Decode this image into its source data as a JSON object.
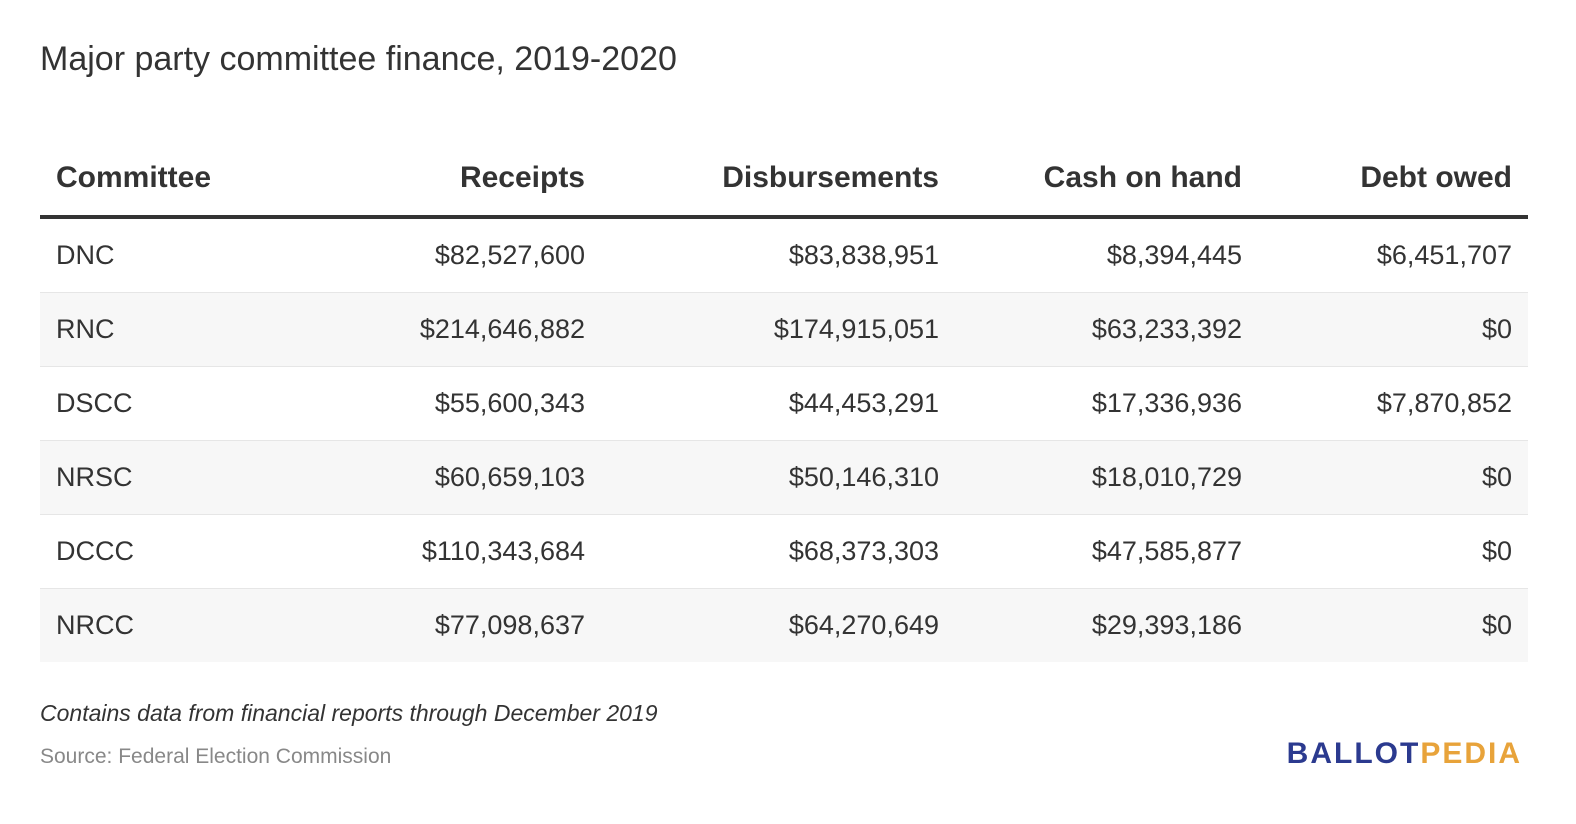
{
  "chart_data": {
    "type": "table",
    "title": "Major party committee finance, 2019-2020",
    "columns": [
      "Committee",
      "Receipts",
      "Disbursements",
      "Cash on hand",
      "Debt owed"
    ],
    "rows": [
      [
        "DNC",
        "$82,527,600",
        "$83,838,951",
        "$8,394,445",
        "$6,451,707"
      ],
      [
        "RNC",
        "$214,646,882",
        "$174,915,051",
        "$63,233,392",
        "$0"
      ],
      [
        "DSCC",
        "$55,600,343",
        "$44,453,291",
        "$17,336,936",
        "$7,870,852"
      ],
      [
        "NRSC",
        "$60,659,103",
        "$50,146,310",
        "$18,010,729",
        "$0"
      ],
      [
        "DCCC",
        "$110,343,684",
        "$68,373,303",
        "$47,585,877",
        "$0"
      ],
      [
        "NRCC",
        "$77,098,637",
        "$64,270,649",
        "$29,393,186",
        "$0"
      ]
    ],
    "note": "Contains data from financial reports through December 2019",
    "source": "Source: Federal Election Commission"
  },
  "logo": {
    "part1": "BALLOT",
    "part2": "PEDIA",
    "color1": "#2b3a8f",
    "color2": "#e8a33a"
  },
  "colors": {
    "text": "#333333",
    "alt_row": "#f7f7f7",
    "source_text": "#888888"
  }
}
